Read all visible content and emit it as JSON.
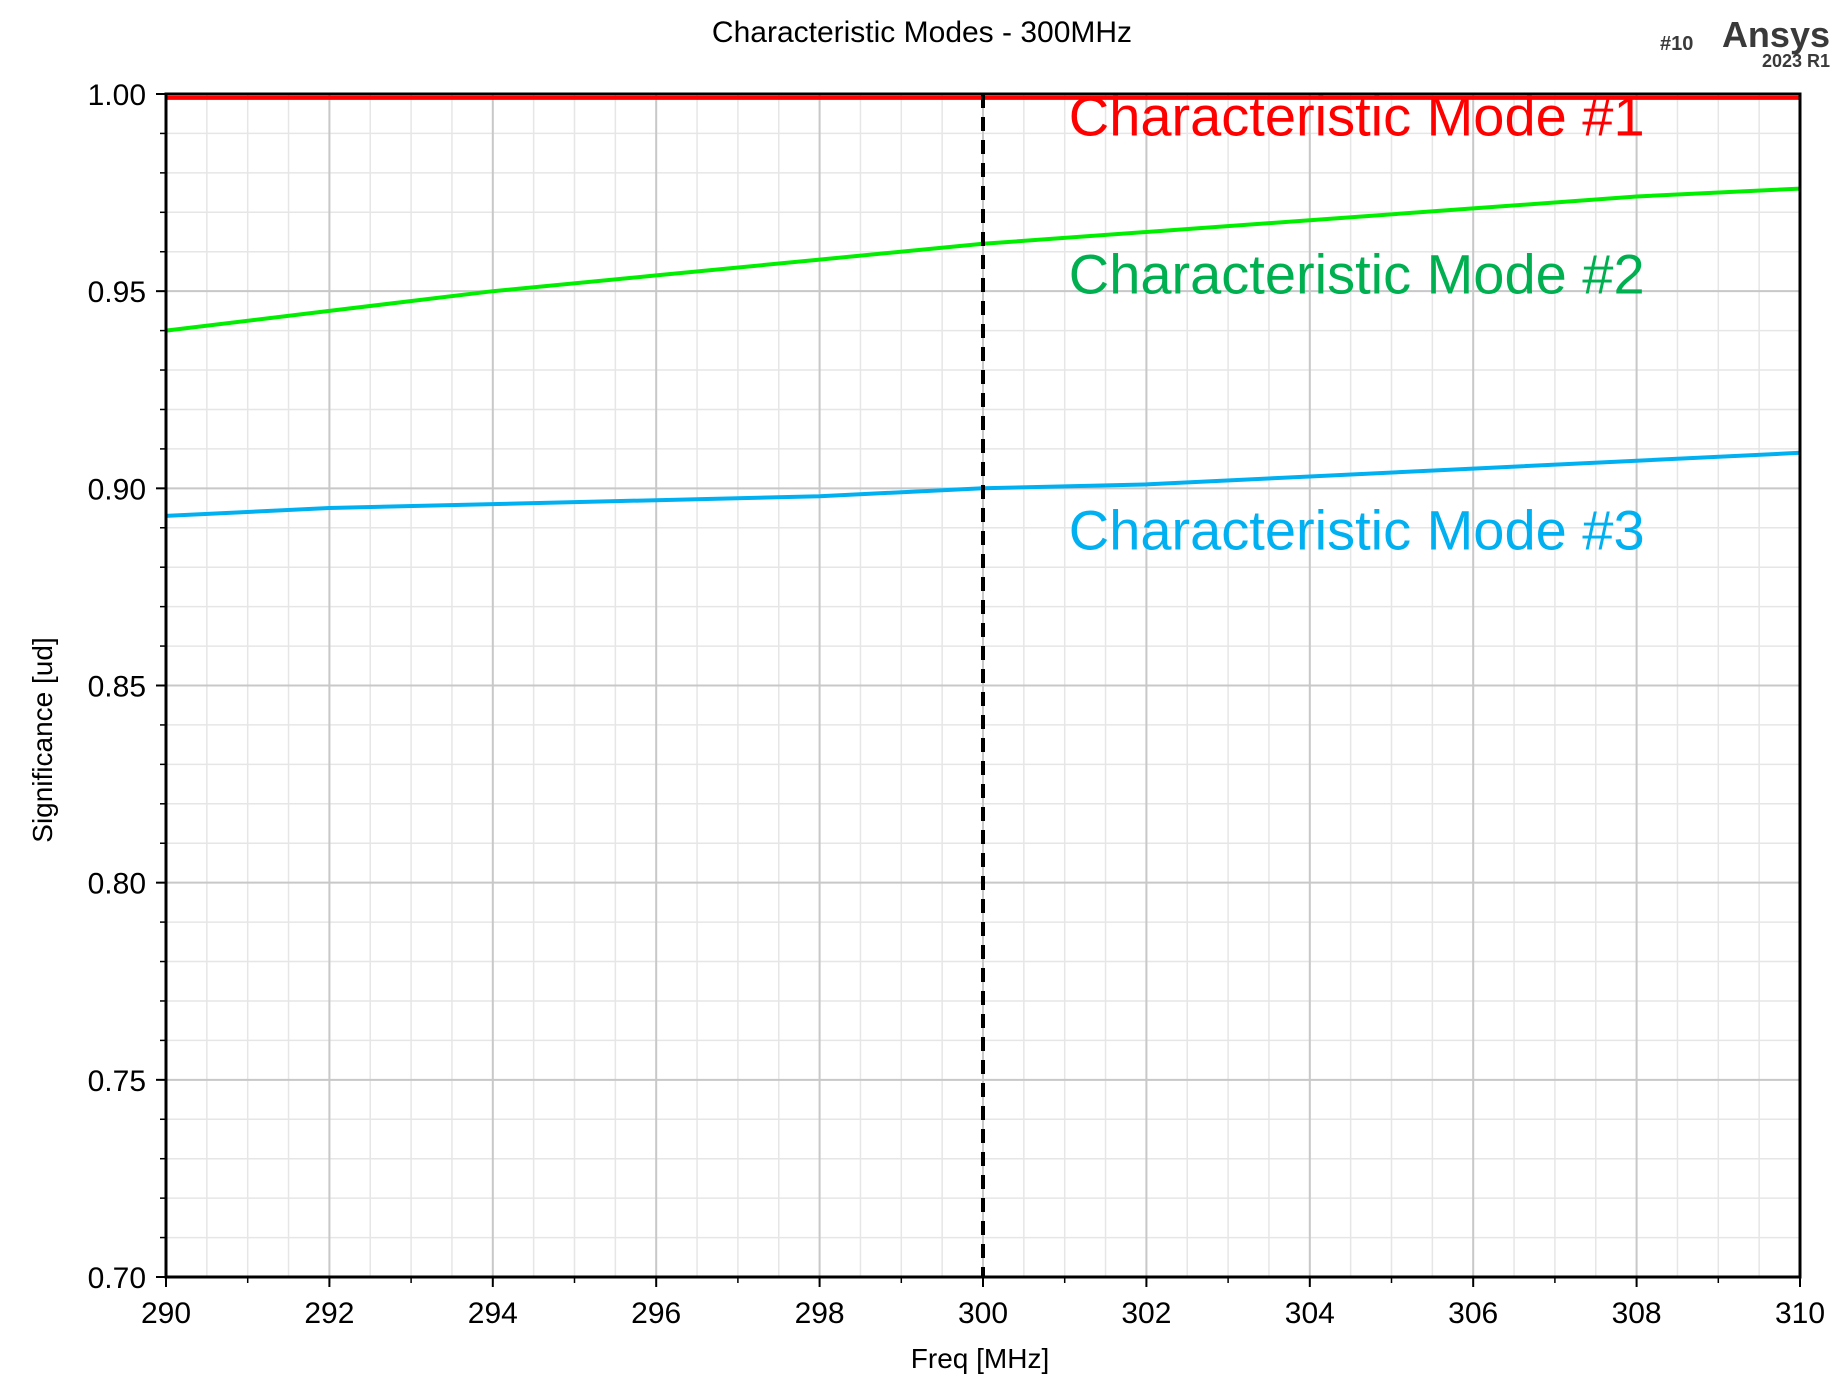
{
  "chart_data": {
    "type": "line",
    "title": "Characteristic Modes - 300MHz",
    "xlabel": "Freq [MHz]",
    "ylabel": "Significance [ud]",
    "xlim": [
      290,
      310
    ],
    "ylim": [
      0.7,
      1.0
    ],
    "x_ticks": [
      "290",
      "292",
      "294",
      "296",
      "298",
      "300",
      "302",
      "304",
      "306",
      "308",
      "310"
    ],
    "y_ticks": [
      "0.70",
      "0.75",
      "0.80",
      "0.85",
      "0.90",
      "0.95",
      "1.00"
    ],
    "grid": true,
    "marker_line_x": 300,
    "plot_id": "#10",
    "brand": {
      "name": "Ansys",
      "version": "2023 R1"
    },
    "series": [
      {
        "annotation": "Characteristic Mode #1",
        "color": "#ff0000",
        "annotation_color": "#ff0000",
        "x": [
          290,
          292,
          294,
          296,
          298,
          300,
          302,
          304,
          306,
          308,
          310
        ],
        "y": [
          0.999,
          0.999,
          0.999,
          0.999,
          0.999,
          0.999,
          0.999,
          0.999,
          0.999,
          0.999,
          0.999
        ]
      },
      {
        "annotation": "Characteristic Mode #2",
        "color": "#00ee00",
        "annotation_color": "#00b050",
        "x": [
          290,
          292,
          294,
          296,
          298,
          300,
          302,
          304,
          306,
          308,
          310
        ],
        "y": [
          0.94,
          0.945,
          0.95,
          0.954,
          0.958,
          0.962,
          0.965,
          0.968,
          0.971,
          0.974,
          0.976
        ]
      },
      {
        "annotation": "Characteristic Mode #3",
        "color": "#00b0f0",
        "annotation_color": "#00b0f0",
        "x": [
          290,
          292,
          294,
          296,
          298,
          300,
          302,
          304,
          306,
          308,
          310
        ],
        "y": [
          0.893,
          0.895,
          0.896,
          0.897,
          0.898,
          0.9,
          0.901,
          0.903,
          0.905,
          0.907,
          0.909
        ]
      }
    ]
  }
}
